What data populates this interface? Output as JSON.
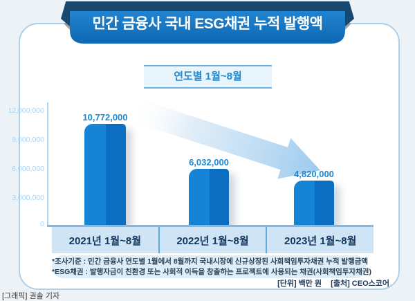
{
  "header": {
    "title": "민간 금융사 국내 ESG채권 누적 발행액"
  },
  "period_label": "연도별 1월~8월",
  "chart_data": {
    "type": "bar",
    "title": "민간 금융사 국내 ESG채권 누적 발행액",
    "subtitle": "연도별 1월~8월",
    "categories": [
      "2021년 1월~8월",
      "2022년 1월~8월",
      "2023년 1월~8월"
    ],
    "values": [
      10772000,
      6032000,
      4820000
    ],
    "value_labels": [
      "10,772,000",
      "6,032,000",
      "4,820,000"
    ],
    "unit": "백만 원",
    "ylim": [
      0,
      12000000
    ],
    "yticks": [
      "12,000,000",
      "9,000,000",
      "6,000,000",
      "3,000,000",
      "0"
    ],
    "grid": "off",
    "trend_annotation": "decreasing-arrow",
    "colors": {
      "bar_light": "#1583d6",
      "bar_dark": "#0b6ec0",
      "accent_blue": "#1e88cf",
      "ribbon_blue": "#1376c4",
      "ribbon_navy": "#17486f",
      "arrow_blue": "#9ccbee"
    }
  },
  "footnotes": [
    "*조사기준 : 민간 금융사 연도별 1월에서 8월까지 국내시장에 신규상장된 사회책임투자채권 누적 발행금액",
    "*ESG채권 : 발행자금이 친환경 또는 사회적 이득을 창출하는 프로젝트에 사용되는 채권(사회책임투자채권)"
  ],
  "footer": {
    "unit_label": "[단위] 백만 원",
    "source_label": "[출처] CEO스코어",
    "credit": "[그래픽] 권솔 기자"
  }
}
